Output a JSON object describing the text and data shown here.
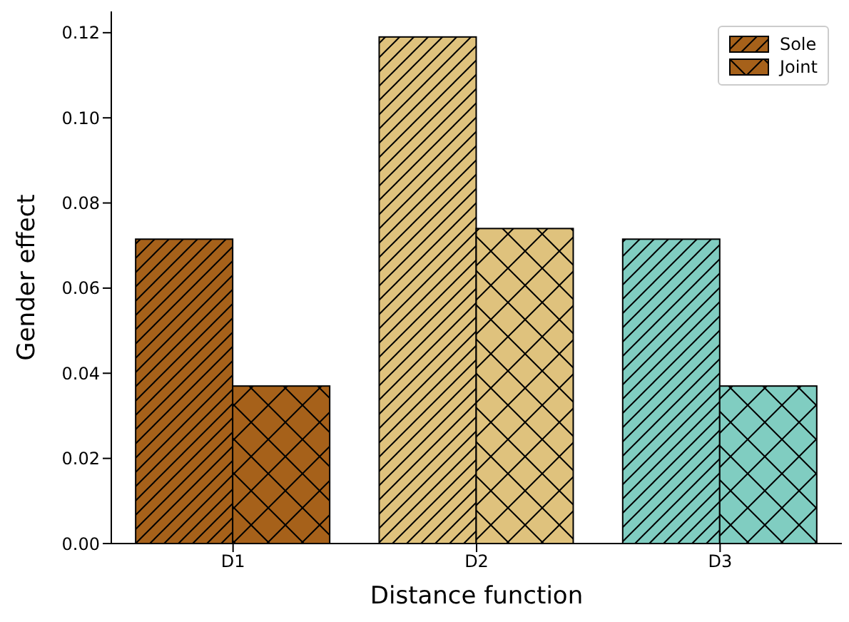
{
  "chart_data": {
    "type": "bar",
    "xlabel": "Distance function",
    "ylabel": "Gender effect",
    "categories": [
      "D1",
      "D2",
      "D3"
    ],
    "series": [
      {
        "name": "Sole",
        "colors": [
          "#a6611a",
          "#dfc27d",
          "#80cdc1"
        ],
        "values": [
          0.0715,
          0.119,
          0.0715
        ]
      },
      {
        "name": "Joint",
        "colors": [
          "#a6611a",
          "#dfc27d",
          "#80cdc1"
        ],
        "values": [
          0.037,
          0.074,
          0.037
        ]
      }
    ],
    "ylim": [
      0,
      0.125
    ],
    "yticks": [
      {
        "value": 0,
        "label": "0.00"
      },
      0.02,
      0.04,
      0.06,
      0.08,
      {
        "value": 0.1,
        "label": "0.10"
      },
      0.12
    ],
    "grid": false,
    "legend": "top right"
  }
}
